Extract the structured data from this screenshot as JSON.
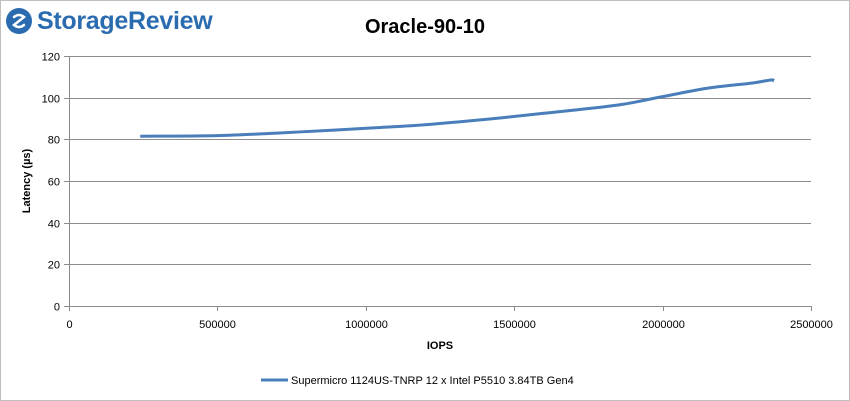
{
  "logo": {
    "text": "StorageReview"
  },
  "chart_data": {
    "type": "line",
    "title": "Oracle-90-10",
    "xlabel": "IOPS",
    "ylabel": "Latency (µs)",
    "xlim": [
      0,
      2500000
    ],
    "ylim": [
      0,
      120
    ],
    "x_ticks": [
      0,
      500000,
      1000000,
      1500000,
      2000000,
      2500000
    ],
    "y_ticks": [
      0,
      20,
      40,
      60,
      80,
      100,
      120
    ],
    "grid": "horizontal",
    "legend_position": "bottom",
    "series": [
      {
        "name": "Supermicro 1124US-TNRP 12 x Intel P5510 3.84TB Gen4",
        "color": "#4a7ebb",
        "x": [
          240000,
          500000,
          700000,
          900000,
          1050000,
          1200000,
          1400000,
          1600000,
          1850000,
          2000000,
          2150000,
          2300000,
          2365000,
          2375000
        ],
        "y": [
          81.5,
          81.8,
          83,
          84.5,
          85.7,
          87,
          89.5,
          92.5,
          96.5,
          100.5,
          104.5,
          107,
          108.5,
          108
        ]
      }
    ]
  }
}
